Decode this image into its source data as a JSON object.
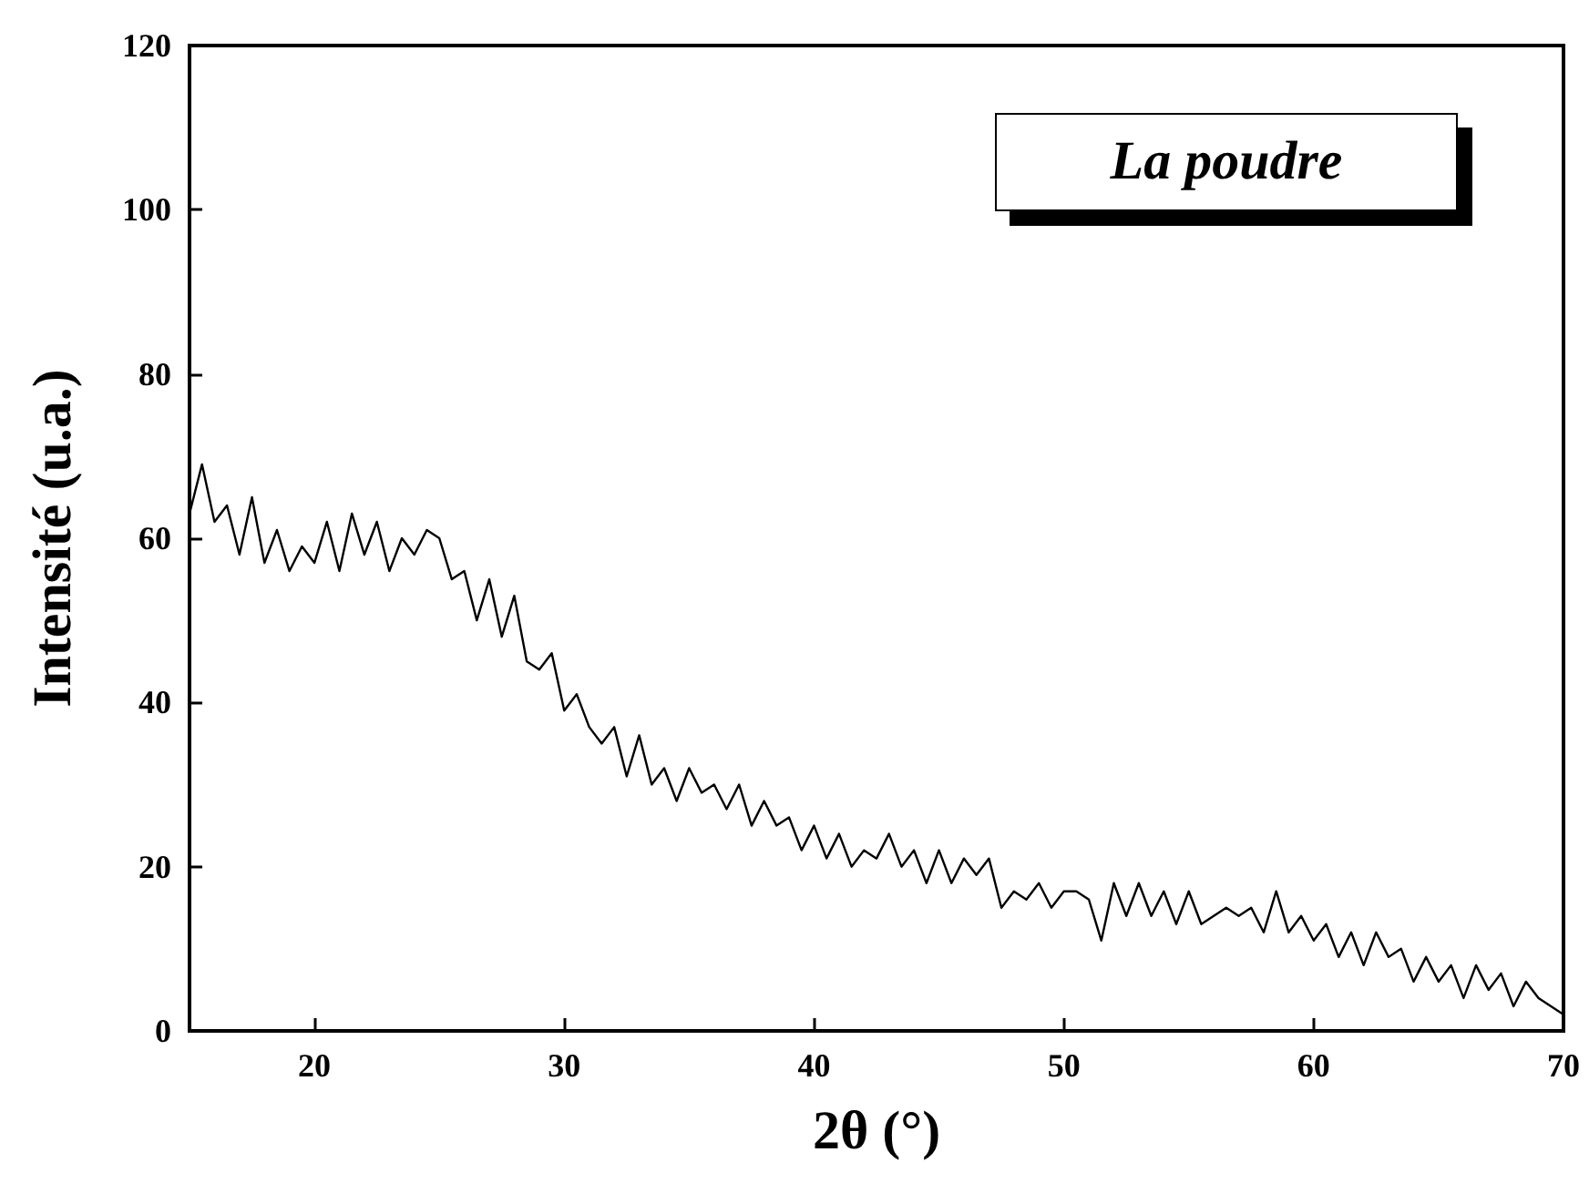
{
  "chart_data": {
    "type": "line",
    "xlabel": "2θ (°)",
    "ylabel": "Intensité (u.a.)",
    "annotations": [
      "La poudre"
    ],
    "xlim": [
      15,
      70
    ],
    "xticks": [
      20,
      30,
      40,
      50,
      60,
      70
    ],
    "ylim": [
      0,
      120
    ],
    "yticks": [
      0,
      20,
      40,
      60,
      80,
      100,
      120
    ],
    "grid": false,
    "marker": "none",
    "line_style": "solid",
    "series": [
      {
        "color": "#000000",
        "x": [
          15,
          15.5,
          16,
          16.5,
          17,
          17.5,
          18,
          18.5,
          19,
          19.5,
          20,
          20.5,
          21,
          21.5,
          22,
          22.5,
          23,
          23.5,
          24,
          24.5,
          25,
          25.5,
          26,
          26.5,
          27,
          27.5,
          28,
          28.5,
          29,
          29.5,
          30,
          30.5,
          31,
          31.5,
          32,
          32.5,
          33,
          33.5,
          34,
          34.5,
          35,
          35.5,
          36,
          36.5,
          37,
          37.5,
          38,
          38.5,
          39,
          39.5,
          40,
          40.5,
          41,
          41.5,
          42,
          42.5,
          43,
          43.5,
          44,
          44.5,
          45,
          45.5,
          46,
          46.5,
          47,
          47.5,
          48,
          48.5,
          49,
          49.5,
          50,
          50.5,
          51,
          51.5,
          52,
          52.5,
          53,
          53.5,
          54,
          54.5,
          55,
          55.5,
          56,
          56.5,
          57,
          57.5,
          58,
          58.5,
          59,
          59.5,
          60,
          60.5,
          61,
          61.5,
          62,
          62.5,
          63,
          63.5,
          64,
          64.5,
          65,
          65.5,
          66,
          66.5,
          67,
          67.5,
          68,
          68.5,
          69,
          69.5,
          70
        ],
        "values": [
          63,
          69,
          62,
          64,
          58,
          65,
          57,
          61,
          56,
          59,
          57,
          62,
          56,
          63,
          58,
          62,
          56,
          60,
          58,
          61,
          60,
          55,
          56,
          50,
          55,
          48,
          53,
          45,
          44,
          46,
          39,
          41,
          37,
          35,
          37,
          31,
          36,
          30,
          32,
          28,
          32,
          29,
          30,
          27,
          30,
          25,
          28,
          25,
          26,
          22,
          25,
          21,
          24,
          20,
          22,
          21,
          24,
          20,
          22,
          18,
          22,
          18,
          21,
          19,
          21,
          15,
          17,
          16,
          18,
          15,
          17,
          17,
          16,
          11,
          18,
          14,
          18,
          14,
          17,
          13,
          17,
          13,
          14,
          15,
          14,
          15,
          12,
          17,
          12,
          14,
          11,
          13,
          9,
          12,
          8,
          12,
          9,
          10,
          6,
          9,
          6,
          8,
          4,
          8,
          5,
          7,
          3,
          6,
          4,
          3,
          2
        ]
      }
    ]
  }
}
